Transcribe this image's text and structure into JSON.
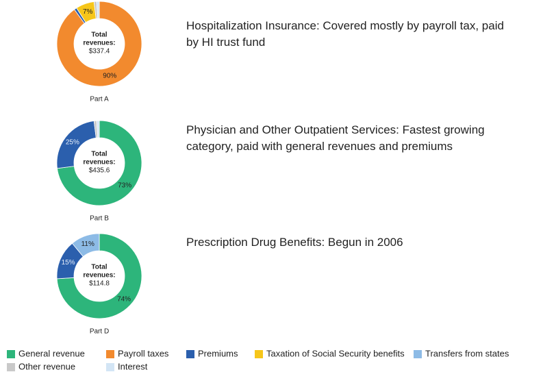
{
  "legend": {
    "categories": [
      "General revenue",
      "Payroll taxes",
      "Premiums",
      "Taxation of Social Security benefits",
      "Transfers from states",
      "Other revenue",
      "Interest"
    ],
    "colors": [
      "#2db57b",
      "#f28a2e",
      "#2b5fad",
      "#f6c61a",
      "#8dbbe6",
      "#c9c9c9",
      "#d3e5f5"
    ]
  },
  "chart_data": [
    {
      "type": "pie",
      "donut": true,
      "title": "Part A",
      "center_text": [
        "Total",
        "revenues:",
        "$337.4"
      ],
      "description": "Hospitalization Insurance:  Covered mostly by payroll tax, paid by HI trust fund",
      "values": [
        0,
        90,
        1,
        7,
        0,
        1,
        1
      ],
      "value_labels": [
        null,
        "90%",
        null,
        "7%",
        null,
        null,
        null
      ]
    },
    {
      "type": "pie",
      "donut": true,
      "title": "Part B",
      "center_text": [
        "Total",
        "revenues:",
        "$435.6"
      ],
      "description": "Physician and Other Outpatient Services:  Fastest growing category, paid with general revenues and premiums",
      "values": [
        73,
        0,
        25,
        0,
        0,
        1,
        1
      ],
      "value_labels": [
        "73%",
        null,
        "25%",
        null,
        null,
        null,
        null
      ]
    },
    {
      "type": "pie",
      "donut": true,
      "title": "Part D",
      "center_text": [
        "Total",
        "revenues:",
        "$114.8"
      ],
      "description": "Prescription Drug Benefits:  Begun in 2006",
      "values": [
        74,
        0,
        15,
        0,
        11,
        0,
        0
      ],
      "value_labels": [
        "74%",
        null,
        "15%",
        null,
        "11%",
        null,
        null
      ]
    }
  ]
}
